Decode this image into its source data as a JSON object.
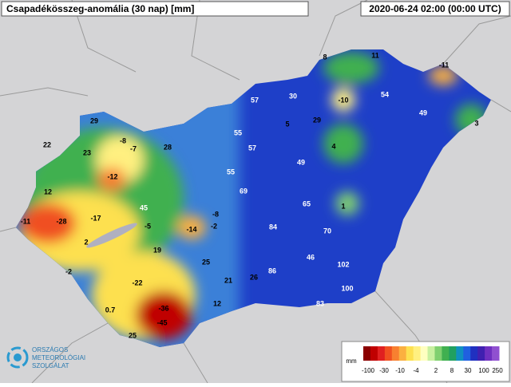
{
  "header": {
    "title": "Csapadékösszeg-anomália (30 nap) [mm]",
    "timestamp": "2020-06-24 02:00 (00:00 UTC)"
  },
  "stations": [
    8,
    11,
    -11,
    57,
    30,
    -10,
    54,
    49,
    3,
    29,
    5,
    29,
    22,
    -8,
    -7,
    28,
    23,
    55,
    57,
    4,
    49,
    55,
    -12,
    12,
    69,
    65,
    1,
    45,
    -8,
    -11,
    -28,
    -17,
    -5,
    -14,
    -2,
    84,
    70,
    2,
    19,
    46,
    102,
    25,
    -2,
    86,
    26,
    21,
    -22,
    100,
    -36,
    0.7,
    83,
    12,
    -45,
    25
  ],
  "legend": {
    "unit": "mm",
    "ticks": [
      -100,
      -30,
      -10,
      -4,
      2,
      8,
      30,
      100,
      250
    ],
    "colors": [
      "#8b0000",
      "#c00000",
      "#e02020",
      "#f05020",
      "#f88030",
      "#fbb040",
      "#fde050",
      "#fff080",
      "#ffffc0",
      "#c8f0a0",
      "#80d070",
      "#40b050",
      "#20a060",
      "#1090c0",
      "#2060e0",
      "#2030c0",
      "#4020b0",
      "#7030c0",
      "#9050d0"
    ]
  },
  "logo": {
    "line1": "ORSZÁGOS",
    "line2": "METEOROLÓGIAI",
    "line3": "SZOLGÁLAT"
  }
}
